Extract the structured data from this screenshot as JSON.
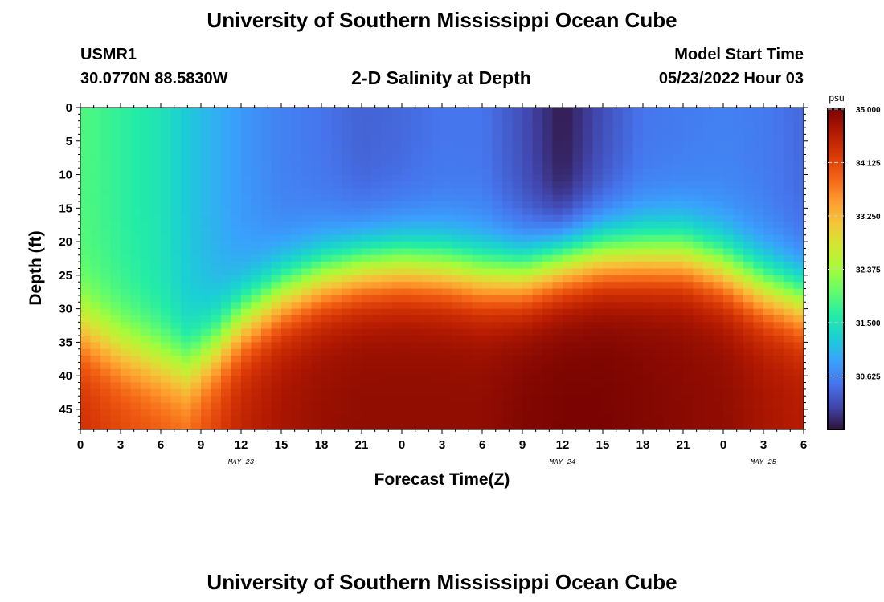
{
  "header": {
    "title": "University of Southern Mississippi Ocean Cube",
    "station": "USMR1",
    "coords": "30.0770N  88.5830W",
    "plot_title": "2-D Salinity at Depth",
    "model_label": "Model Start Time",
    "model_time": "05/23/2022 Hour 03"
  },
  "footer": {
    "title": "University of Southern Mississippi Ocean Cube"
  },
  "colors": {
    "scale": [
      "#30123b",
      "#4145ab",
      "#4675ed",
      "#39a2fc",
      "#1bcfd4",
      "#24eca6",
      "#61fc6c",
      "#a4fc3b",
      "#d1e834",
      "#f3c63a",
      "#fe9b2d",
      "#f36315",
      "#d93806",
      "#b11901",
      "#7a0402"
    ]
  },
  "chart_data": {
    "type": "heatmap",
    "xlabel": "Forecast Time(Z)",
    "ylabel": "Depth (ft)",
    "x_hours_range": [
      0,
      54
    ],
    "ylim": [
      0,
      48
    ],
    "x_tick_labels": [
      "0",
      "3",
      "6",
      "9",
      "12",
      "15",
      "18",
      "21",
      "0",
      "3",
      "6",
      "9",
      "12",
      "15",
      "18",
      "21",
      "0",
      "3",
      "6"
    ],
    "y_ticks": [
      "0",
      "5",
      "10",
      "15",
      "20",
      "25",
      "30",
      "35",
      "40",
      "45"
    ],
    "date_labels": [
      {
        "text": "MAY 23",
        "hour": 12
      },
      {
        "text": "MAY 24",
        "hour": 36
      },
      {
        "text": "MAY 25",
        "hour": 51
      }
    ],
    "colorbar": {
      "unit": "psu",
      "range": [
        29.75,
        35.0
      ],
      "tick_labels": [
        "35.000",
        "34.125",
        "33.250",
        "32.375",
        "31.500",
        "30.625"
      ]
    },
    "halocline_depth_ft": {
      "hours": [
        0,
        3,
        6,
        8,
        10,
        12,
        15,
        18,
        21,
        24,
        27,
        30,
        33,
        36,
        39,
        42,
        45,
        48,
        51,
        54
      ],
      "values": [
        33,
        36,
        38,
        39,
        36,
        32,
        28,
        25.5,
        24,
        23.5,
        24,
        25,
        25,
        23,
        22,
        22,
        22,
        24,
        27,
        29
      ]
    },
    "surface_salinity_psu": {
      "hours": [
        0,
        3,
        6,
        8,
        10,
        12,
        15,
        18,
        21,
        24,
        27,
        30,
        33,
        36,
        39,
        42,
        45,
        48,
        51,
        54
      ],
      "values": [
        31.9,
        31.7,
        31.5,
        31.2,
        31.0,
        30.8,
        30.6,
        30.5,
        30.35,
        30.4,
        30.5,
        30.5,
        30.2,
        29.8,
        30.2,
        30.5,
        30.55,
        30.6,
        30.55,
        30.4
      ]
    },
    "deep_salinity_psu": {
      "hours": [
        0,
        3,
        6,
        8,
        10,
        12,
        15,
        18,
        21,
        24,
        27,
        30,
        33,
        36,
        39,
        42,
        45,
        48,
        51,
        54
      ],
      "values": [
        34.35,
        34.15,
        34.0,
        33.9,
        34.2,
        34.5,
        34.7,
        34.8,
        34.85,
        34.85,
        34.85,
        34.85,
        34.95,
        35.0,
        35.0,
        34.95,
        34.9,
        34.85,
        34.7,
        34.6
      ]
    }
  }
}
